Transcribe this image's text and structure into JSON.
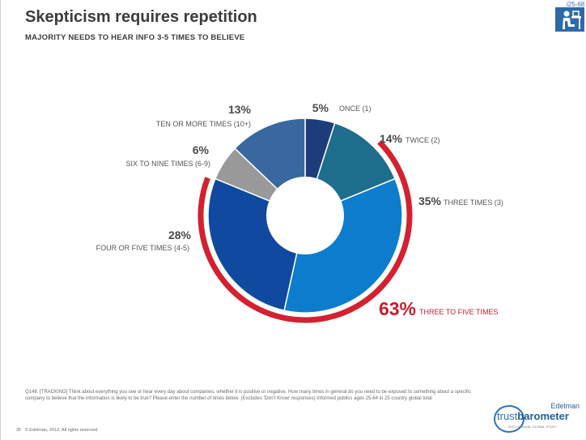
{
  "slide": {
    "title": "Skepticism requires repetition",
    "subtitle": "MAJORITY NEEDS TO HEAR INFO 3-5 TIMES TO BELIEVE",
    "id": "i25-68",
    "icon": "person-at-desk-icon",
    "footnote": "Q148. [TRACKING] Think about everything you see or hear every day about companies, whether it is positive or negative. How many times in general do you need to be exposed to something about a specific company to believe that the information is likely to be true? Please enter the number of times below. (Excludes 'Don't Know' responses) Informed publics ages 25-64 in 25 country global total",
    "page_number": "35",
    "copyright": "© Edelman, 2012. All rights reserved.",
    "logo": {
      "company": "Edelman",
      "word_light": "trust",
      "word_bold": "barometer",
      "tagline": "2012 • ANNUAL GLOBAL STUDY"
    }
  },
  "colors": {
    "once": "#1d3d7a",
    "twice": "#1e6d8c",
    "three": "#0e7ccc",
    "four_five": "#0f4aa0",
    "six_nine": "#999999",
    "ten_more": "#38689f",
    "highlight": "#d42030"
  },
  "chart_data": {
    "type": "pie",
    "donut": true,
    "slices": [
      {
        "label": "ONCE (1)",
        "pct_label": "5%",
        "value": 5
      },
      {
        "label": "TWICE (2)",
        "pct_label": "14%",
        "value": 14
      },
      {
        "label": "THREE TIMES (3)",
        "pct_label": "35%",
        "value": 35
      },
      {
        "label": "FOUR OR FIVE TIMES (4-5)",
        "pct_label": "28%",
        "value": 28
      },
      {
        "label": "SIX TO NINE TIMES (6-9)",
        "pct_label": "6%",
        "value": 6
      },
      {
        "label": "TEN OR MORE TIMES (10+)",
        "pct_label": "13%",
        "value": 13
      }
    ],
    "highlight": {
      "label": "THREE TO FIVE TIMES",
      "pct_label": "63%",
      "value": 63
    }
  }
}
